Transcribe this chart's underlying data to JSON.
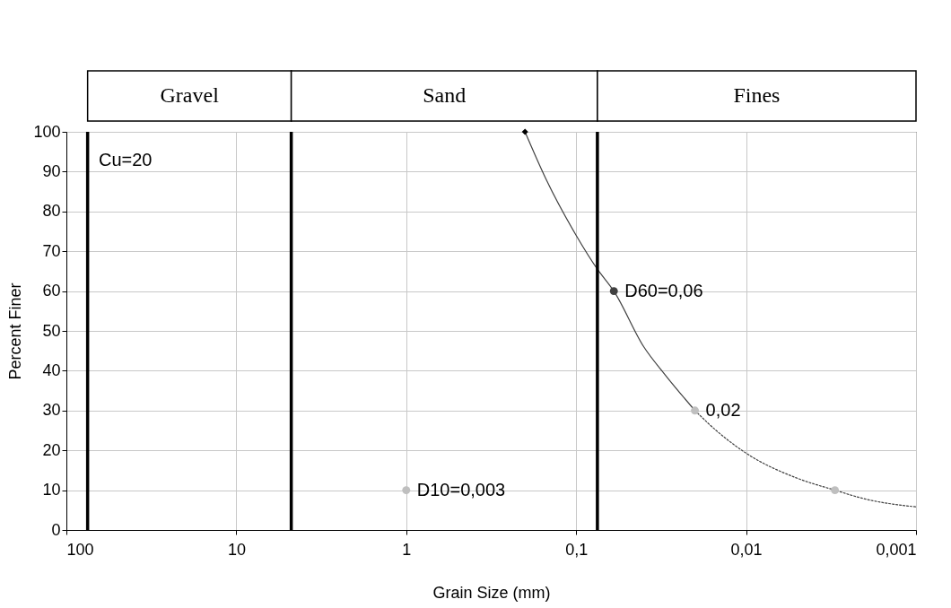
{
  "chart_data": {
    "type": "line",
    "xlabel": "Grain Size (mm)",
    "ylabel": "Percent Finer",
    "log": "x",
    "xlim": [
      100,
      0.001
    ],
    "xticks": [
      100,
      10,
      1,
      {
        "value": 0.1,
        "label": "0,1"
      },
      {
        "value": 0.01,
        "label": "0,01"
      },
      {
        "value": 0.001,
        "label": "0,001"
      }
    ],
    "ylim": [
      0,
      100
    ],
    "yticks": [
      0,
      10,
      20,
      30,
      40,
      50,
      60,
      70,
      80,
      90,
      100
    ],
    "grid": true,
    "series": [
      {
        "type": "line",
        "color": "#404040",
        "line_style": "solid",
        "x": [
          0.2,
          0.15,
          0.1,
          0.075,
          0.06,
          0.04,
          0.03,
          0.02
        ],
        "values": [
          100,
          88,
          74,
          65.5,
          60,
          46,
          39,
          30
        ]
      },
      {
        "type": "line",
        "color": "#404040",
        "line_style": "dotted",
        "x": [
          0.02,
          0.015,
          0.01,
          0.005,
          0.003,
          0.002,
          0.001
        ],
        "values": [
          30,
          25,
          19.3,
          13,
          10,
          7.8,
          5.8
        ]
      },
      {
        "type": "scatter",
        "marker": "diamond",
        "color": "#000000",
        "x": [
          0.2
        ],
        "values": [
          100
        ]
      },
      {
        "type": "scatter",
        "marker": "circle",
        "colors": [
          "#404040",
          "#bfbfbf",
          "#bfbfbf",
          "#bfbfbf"
        ],
        "x": [
          0.06,
          0.02,
          1,
          0.003
        ],
        "values": [
          60,
          30,
          10,
          10
        ]
      }
    ],
    "ref_lines": [
      {
        "axis": "x",
        "value": 75,
        "color": "#000000"
      },
      {
        "axis": "x",
        "value": 4.75,
        "color": "#000000"
      },
      {
        "axis": "x",
        "value": 0.075,
        "color": "#000000"
      }
    ],
    "annotations": [
      "Gravel",
      "Sand",
      "Fines",
      "Cu=20",
      {
        "text": "D60=0,06",
        "x": 0.06,
        "y": 60
      },
      {
        "text": "0,02",
        "x": 0.02,
        "y": 30
      },
      {
        "text": "D10=0,003",
        "x": 1,
        "y": 10
      }
    ]
  }
}
